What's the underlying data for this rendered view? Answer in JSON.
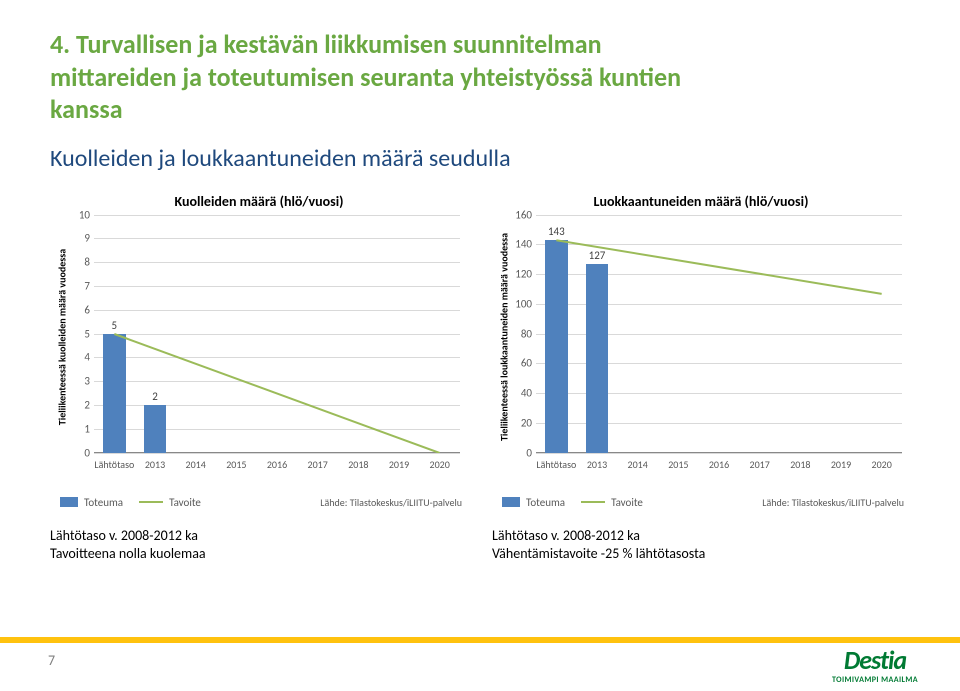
{
  "title_line1": "4. Turvallisen ja kestävän liikkumisen suunnitelman",
  "title_line2": "mittareiden ja toteutumisen seuranta yhteistyössä kuntien",
  "title_line3": "kanssa",
  "subtitle": "Kuolleiden ja loukkaantuneiden määrä seudulla",
  "chart1": {
    "title": "Kuolleiden määrä (hlö/vuosi)",
    "y_label": "Tieliikenteessä kuolleiden määrä vuodessa",
    "type": "bar-with-trend",
    "ylim": [
      0,
      10
    ],
    "ytick_step": 1,
    "categories": [
      "Lähtötaso",
      "2013",
      "2014",
      "2015",
      "2016",
      "2017",
      "2018",
      "2019",
      "2020"
    ],
    "bar_values": [
      5,
      2,
      null,
      null,
      null,
      null,
      null,
      null,
      null
    ],
    "trend_start": 5,
    "trend_end": 0,
    "bar_color": "#4f81bd",
    "trend_color": "#9bbb59",
    "grid_color": "#d9d9d9",
    "bar_width": 0.55,
    "legend_bar": "Toteuma",
    "legend_line": "Tavoite",
    "source": "Lähde: Tilastokeskus/iLIITU-palvelu",
    "caption_line1": "Lähtötaso v. 2008-2012 ka",
    "caption_line2": "Tavoitteena nolla kuolemaa"
  },
  "chart2": {
    "title": "Luokkaantuneiden määrä (hlö/vuosi)",
    "y_label": "Tieliikenteessä loukkaantuneiden määrä vuodessa",
    "type": "bar-with-trend",
    "ylim": [
      0,
      160
    ],
    "ytick_step": 20,
    "categories": [
      "Lähtötaso",
      "2013",
      "2014",
      "2015",
      "2016",
      "2017",
      "2018",
      "2019",
      "2020"
    ],
    "bar_values": [
      143,
      127,
      null,
      null,
      null,
      null,
      null,
      null,
      null
    ],
    "trend_start": 143,
    "trend_end": 107,
    "bar_color": "#4f81bd",
    "trend_color": "#9bbb59",
    "grid_color": "#d9d9d9",
    "bar_width": 0.55,
    "legend_bar": "Toteuma",
    "legend_line": "Tavoite",
    "source": "Lähde: Tilastokeskus/iLIITU-palvelu",
    "caption_line1": "Lähtötaso v. 2008-2012 ka",
    "caption_line2": "Vähentämistavoite -25 % lähtötasosta"
  },
  "page_number": "7",
  "logo_main": "Destia",
  "logo_tag": "TOIMIVAMPI MAAILMA"
}
